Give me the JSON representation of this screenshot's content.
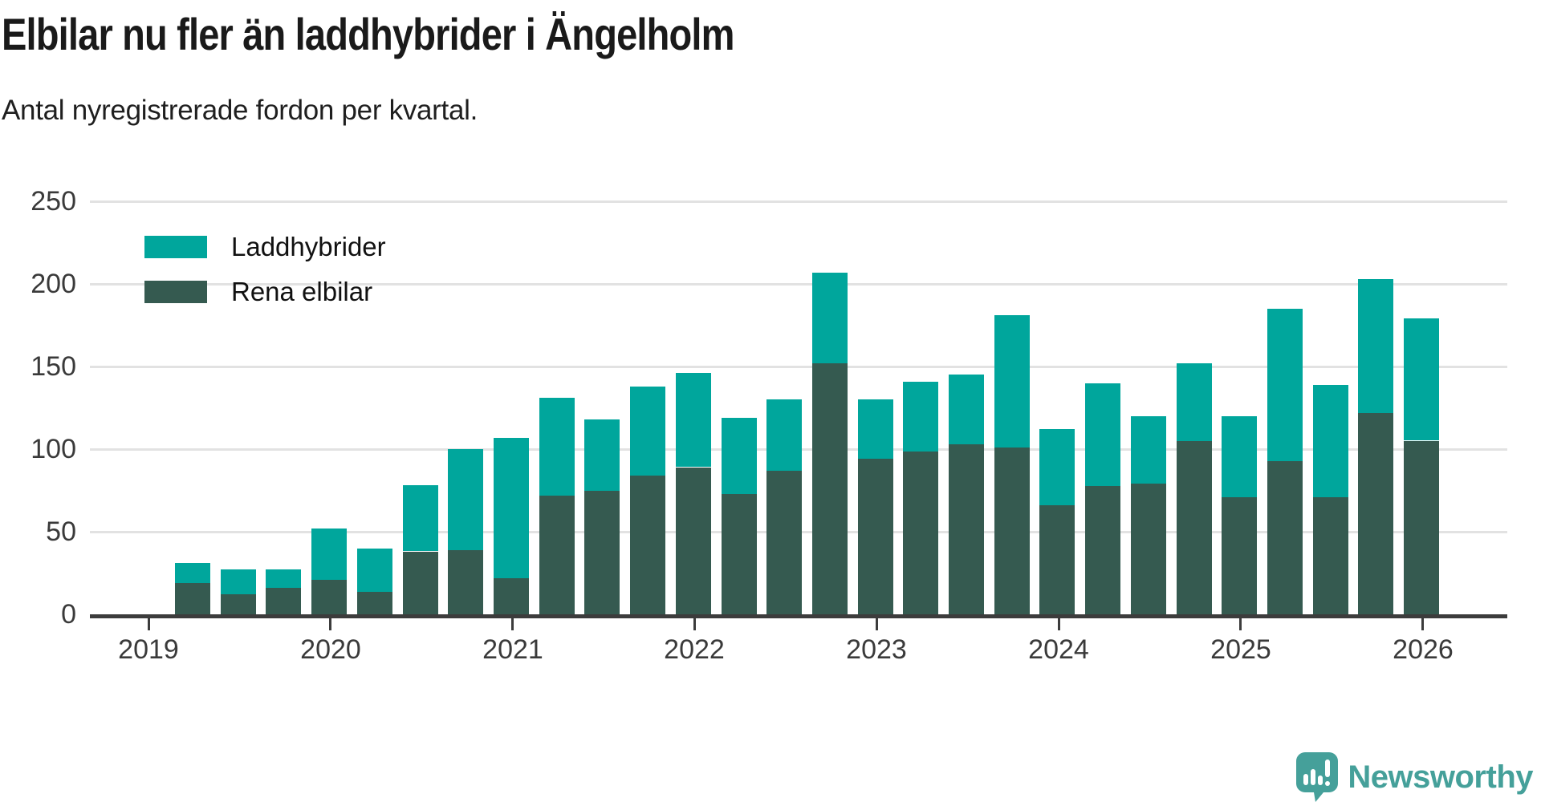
{
  "header": {
    "title": "Elbilar nu fler än laddhybrider i Ängelholm",
    "subtitle": "Antal nyregistrerade fordon per kvartal."
  },
  "legend": [
    {
      "label": "Laddhybrider",
      "color": "#00a69c"
    },
    {
      "label": "Rena elbilar",
      "color": "#355a50"
    }
  ],
  "chart_data": {
    "type": "bar",
    "stacked": true,
    "title": "Elbilar nu fler än laddhybrider i Ängelholm",
    "subtitle": "Antal nyregistrerade fordon per kvartal.",
    "x_tick_labels": [
      "2019",
      "2020",
      "2021",
      "2022",
      "2023",
      "2024",
      "2025",
      "2026"
    ],
    "y_ticks": [
      0,
      50,
      100,
      150,
      200,
      250
    ],
    "ylim": [
      0,
      250
    ],
    "grid": "horizontal",
    "legend_position": "top-left-inside",
    "quarters": [
      "2019 Q2",
      "2019 Q3",
      "2019 Q4",
      "2020 Q1",
      "2020 Q2",
      "2020 Q3",
      "2020 Q4",
      "2021 Q1",
      "2021 Q2",
      "2021 Q3",
      "2021 Q4",
      "2022 Q1",
      "2022 Q2",
      "2022 Q3",
      "2022 Q4",
      "2023 Q1",
      "2023 Q2",
      "2023 Q3",
      "2023 Q4",
      "2024 Q1",
      "2024 Q2",
      "2024 Q3",
      "2024 Q4",
      "2025 Q1",
      "2025 Q2",
      "2025 Q3",
      "2025 Q4",
      "2026 Q1"
    ],
    "series": [
      {
        "name": "Rena elbilar",
        "color": "#355a50",
        "values": [
          19,
          12,
          16,
          21,
          14,
          38,
          39,
          22,
          72,
          75,
          84,
          89,
          73,
          87,
          152,
          94,
          99,
          103,
          101,
          66,
          78,
          79,
          105,
          71,
          93,
          71,
          122,
          105
        ]
      },
      {
        "name": "Laddhybrider",
        "color": "#00a69c",
        "values": [
          12,
          15,
          11,
          31,
          26,
          40,
          61,
          85,
          59,
          43,
          54,
          57,
          46,
          43,
          55,
          36,
          42,
          42,
          80,
          46,
          62,
          41,
          47,
          49,
          92,
          68,
          81,
          74
        ]
      }
    ],
    "totals": [
      31,
      27,
      27,
      52,
      40,
      78,
      100,
      107,
      131,
      118,
      138,
      146,
      119,
      130,
      207,
      130,
      141,
      145,
      181,
      112,
      140,
      120,
      152,
      120,
      185,
      139,
      203,
      179
    ]
  },
  "footer": {
    "brand": "Newsworthy",
    "brand_color": "#45a09a"
  }
}
